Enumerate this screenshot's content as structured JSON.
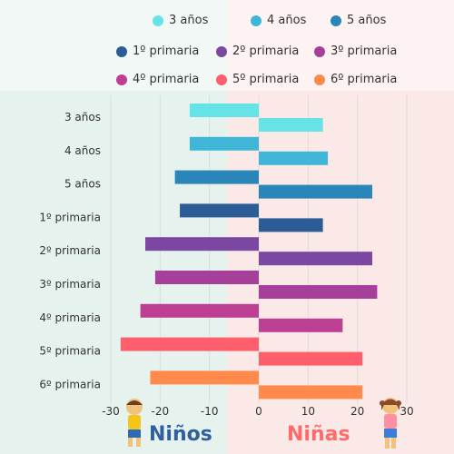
{
  "chart_data": {
    "type": "bar",
    "orientation": "horizontal",
    "categories": [
      "3 años",
      "4 años",
      "5 años",
      "1º primaria",
      "2º primaria",
      "3º primaria",
      "4º primaria",
      "5º primaria",
      "6º primaria"
    ],
    "series": [
      {
        "name": "Niños",
        "values": [
          -14,
          -14,
          -17,
          -16,
          -23,
          -21,
          -24,
          -28,
          -22
        ]
      },
      {
        "name": "Niñas",
        "values": [
          13,
          14,
          23,
          13,
          23,
          24,
          17,
          21,
          21
        ]
      }
    ],
    "colors": [
      "#66e3e6",
      "#3fb6d8",
      "#2a86b9",
      "#2b5c96",
      "#7b47a1",
      "#a53f99",
      "#bd3f93",
      "#ff5f6d",
      "#ff8a4c"
    ],
    "xticks": [
      -30,
      -20,
      -10,
      0,
      10,
      20,
      30
    ],
    "xtick_labels": [
      "-30",
      "-20",
      "-10",
      "0",
      "10",
      "20",
      "30"
    ],
    "xlim": [
      -30,
      30
    ],
    "grid": true,
    "legend_position": "top"
  },
  "labels": {
    "left": "Niños",
    "right": "Niñas"
  },
  "colors": {
    "bg_left": "#e6f2ee",
    "bg_right": "#fbe9e7",
    "left_label": "#2f5f9f",
    "right_label": "#ff6b6b",
    "grid": "#dcdcdc"
  }
}
